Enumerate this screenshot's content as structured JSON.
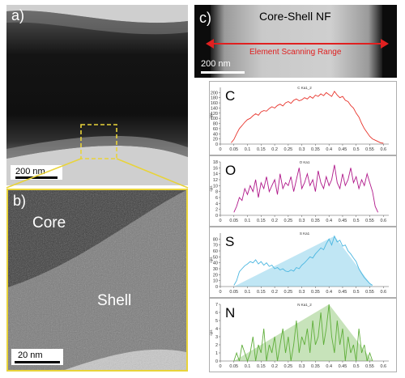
{
  "panels": {
    "a": {
      "label": "a)",
      "scale_bar": "200 nm"
    },
    "b": {
      "label": "b)",
      "core_label": "Core",
      "shell_label": "Shell",
      "scale_bar": "20 nm"
    },
    "c": {
      "label": "c)",
      "title": "Core-Shell NF",
      "range_label": "Element Scanning Range",
      "scale_bar": "200 nm"
    }
  },
  "colors": {
    "carbon": "#e8342c",
    "oxygen": "#b0188a",
    "sulfur": "#4ab6e0",
    "nitrogen": "#5fae3a",
    "arrow": "#e02020",
    "zoom_box": "#e8d33a"
  },
  "chart_data": [
    {
      "type": "line",
      "element": "C",
      "series_title": "C Ka1_2",
      "ylabel": "cps",
      "color": "#e8342c",
      "fill": false,
      "xlim": [
        0,
        0.62
      ],
      "ylim": [
        0,
        220
      ],
      "xticks": [
        "0",
        "0.05",
        "0.1",
        "0.15",
        "0.2",
        "0.25",
        "0.3",
        "0.35",
        "0.4",
        "0.45",
        "0.5",
        "0.55",
        "0.6"
      ],
      "yticks": [
        "0",
        "20",
        "40",
        "60",
        "80",
        "100",
        "120",
        "140",
        "160",
        "180",
        "200"
      ],
      "x": [
        0.04,
        0.05,
        0.06,
        0.07,
        0.08,
        0.09,
        0.1,
        0.11,
        0.12,
        0.13,
        0.14,
        0.15,
        0.16,
        0.17,
        0.18,
        0.19,
        0.2,
        0.21,
        0.22,
        0.23,
        0.24,
        0.25,
        0.26,
        0.27,
        0.28,
        0.29,
        0.3,
        0.31,
        0.32,
        0.33,
        0.34,
        0.35,
        0.36,
        0.37,
        0.38,
        0.39,
        0.4,
        0.41,
        0.42,
        0.43,
        0.44,
        0.45,
        0.46,
        0.47,
        0.48,
        0.49,
        0.5,
        0.51,
        0.52,
        0.53,
        0.54,
        0.55,
        0.56,
        0.57,
        0.58,
        0.59,
        0.6
      ],
      "y": [
        5,
        18,
        40,
        60,
        72,
        85,
        95,
        100,
        110,
        118,
        112,
        125,
        130,
        128,
        138,
        145,
        140,
        150,
        155,
        148,
        160,
        165,
        158,
        170,
        175,
        168,
        172,
        180,
        175,
        185,
        178,
        190,
        185,
        195,
        188,
        200,
        192,
        185,
        205,
        190,
        180,
        185,
        170,
        165,
        150,
        140,
        120,
        105,
        80,
        60,
        45,
        30,
        20,
        15,
        10,
        5,
        3
      ]
    },
    {
      "type": "line",
      "element": "O",
      "series_title": "O Ka1",
      "ylabel": "cps",
      "color": "#b0188a",
      "fill": false,
      "xlim": [
        0,
        0.62
      ],
      "ylim": [
        0,
        18
      ],
      "xticks": [
        "0",
        "0.05",
        "0.1",
        "0.15",
        "0.2",
        "0.25",
        "0.3",
        "0.35",
        "0.4",
        "0.45",
        "0.5",
        "0.55",
        "0.6"
      ],
      "yticks": [
        "0",
        "2",
        "4",
        "6",
        "8",
        "10",
        "12",
        "14",
        "16",
        "18"
      ],
      "x": [
        0.05,
        0.06,
        0.07,
        0.08,
        0.09,
        0.1,
        0.11,
        0.12,
        0.13,
        0.14,
        0.15,
        0.16,
        0.17,
        0.18,
        0.19,
        0.2,
        0.21,
        0.22,
        0.23,
        0.24,
        0.25,
        0.26,
        0.27,
        0.28,
        0.29,
        0.3,
        0.31,
        0.32,
        0.33,
        0.34,
        0.35,
        0.36,
        0.37,
        0.38,
        0.39,
        0.4,
        0.41,
        0.42,
        0.43,
        0.44,
        0.45,
        0.46,
        0.47,
        0.48,
        0.49,
        0.5,
        0.51,
        0.52,
        0.53,
        0.54,
        0.55,
        0.56,
        0.57,
        0.58
      ],
      "y": [
        1,
        3,
        6,
        5,
        9,
        7,
        10,
        8,
        12,
        6,
        11,
        9,
        13,
        8,
        10,
        12,
        7,
        14,
        9,
        11,
        10,
        13,
        8,
        12,
        16,
        9,
        11,
        14,
        10,
        12,
        8,
        15,
        11,
        9,
        13,
        10,
        12,
        17,
        11,
        9,
        14,
        10,
        12,
        16,
        11,
        13,
        9,
        12,
        10,
        14,
        11,
        8,
        3,
        1
      ]
    },
    {
      "type": "area",
      "element": "S",
      "series_title": "S Ka1",
      "ylabel": "cps",
      "color": "#4ab6e0",
      "fill": true,
      "xlim": [
        0,
        0.62
      ],
      "ylim": [
        0,
        90
      ],
      "xticks": [
        "0",
        "0.05",
        "0.1",
        "0.15",
        "0.2",
        "0.25",
        "0.3",
        "0.35",
        "0.4",
        "0.45",
        "0.5",
        "0.55",
        "0.6"
      ],
      "yticks": [
        "0",
        "10",
        "20",
        "30",
        "40",
        "50",
        "60",
        "70",
        "80"
      ],
      "x": [
        0.05,
        0.06,
        0.07,
        0.08,
        0.09,
        0.1,
        0.11,
        0.12,
        0.13,
        0.14,
        0.15,
        0.16,
        0.17,
        0.18,
        0.19,
        0.2,
        0.21,
        0.22,
        0.23,
        0.24,
        0.25,
        0.26,
        0.27,
        0.28,
        0.29,
        0.3,
        0.31,
        0.32,
        0.33,
        0.34,
        0.35,
        0.36,
        0.37,
        0.38,
        0.39,
        0.4,
        0.41,
        0.42,
        0.43,
        0.44,
        0.45,
        0.46,
        0.47,
        0.48,
        0.49,
        0.5,
        0.51,
        0.52,
        0.53,
        0.54,
        0.55,
        0.56
      ],
      "y": [
        2,
        10,
        25,
        30,
        35,
        38,
        42,
        40,
        45,
        38,
        42,
        36,
        40,
        34,
        36,
        30,
        32,
        28,
        30,
        26,
        25,
        28,
        26,
        32,
        30,
        36,
        40,
        45,
        50,
        48,
        55,
        60,
        65,
        62,
        72,
        80,
        70,
        85,
        75,
        78,
        68,
        70,
        60,
        55,
        48,
        42,
        30,
        22,
        15,
        10,
        5,
        2
      ]
    },
    {
      "type": "area",
      "element": "N",
      "series_title": "N Ka1_2",
      "ylabel": "cps",
      "color": "#5fae3a",
      "fill": true,
      "xlim": [
        0,
        0.62
      ],
      "ylim": [
        0,
        7
      ],
      "xticks": [
        "0",
        "0.05",
        "0.1",
        "0.15",
        "0.2",
        "0.25",
        "0.3",
        "0.35",
        "0.4",
        "0.45",
        "0.5",
        "0.55",
        "0.6"
      ],
      "yticks": [
        "0",
        "1",
        "2",
        "3",
        "4",
        "5",
        "6",
        "7"
      ],
      "x": [
        0.05,
        0.06,
        0.07,
        0.08,
        0.09,
        0.1,
        0.11,
        0.12,
        0.13,
        0.14,
        0.15,
        0.16,
        0.17,
        0.18,
        0.19,
        0.2,
        0.21,
        0.22,
        0.23,
        0.24,
        0.25,
        0.26,
        0.27,
        0.28,
        0.29,
        0.3,
        0.31,
        0.32,
        0.33,
        0.34,
        0.35,
        0.36,
        0.37,
        0.38,
        0.39,
        0.4,
        0.41,
        0.42,
        0.43,
        0.44,
        0.45,
        0.46,
        0.47,
        0.48,
        0.49,
        0.5,
        0.51,
        0.52,
        0.53,
        0.54,
        0.55,
        0.56
      ],
      "y": [
        0,
        1,
        0,
        2,
        1,
        0,
        1,
        3,
        0,
        2,
        1,
        4,
        0,
        2,
        1,
        3,
        0,
        2,
        4,
        1,
        3,
        0,
        2,
        5,
        1,
        3,
        2,
        4,
        1,
        5,
        2,
        3,
        6,
        2,
        4,
        7,
        3,
        1,
        5,
        2,
        4,
        0,
        3,
        1,
        2,
        0,
        4,
        1,
        2,
        0,
        1,
        0
      ]
    }
  ]
}
